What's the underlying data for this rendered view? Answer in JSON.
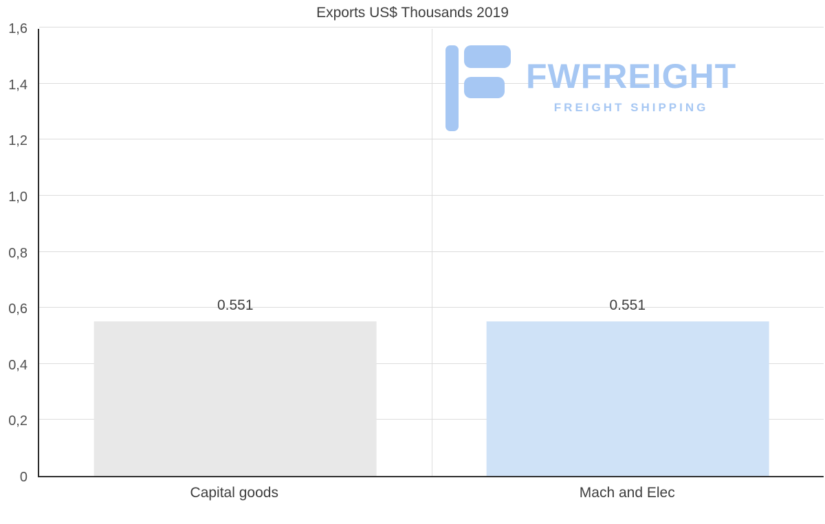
{
  "watermark": {
    "brand": "FWFREIGHT",
    "tagline": "FREIGHT SHIPPING",
    "color": "#a6c7f3"
  },
  "chart_data": {
    "type": "bar",
    "title": "Exports US$ Thousands 2019",
    "categories": [
      "Capital goods",
      "Mach and Elec"
    ],
    "values": [
      0.551,
      0.551
    ],
    "value_labels": [
      "0.551",
      "0.551"
    ],
    "bar_colors": [
      "#e8e8e8",
      "#cfe2f7"
    ],
    "xlabel": "",
    "ylabel": "",
    "ylim": [
      0,
      1.6
    ],
    "yticks": [
      0,
      0.2,
      0.4,
      0.6,
      0.8,
      1.0,
      1.2,
      1.4,
      1.6
    ],
    "ytick_labels": [
      "0",
      "0,2",
      "0,4",
      "0,6",
      "0,8",
      "1,0",
      "1,2",
      "1,4",
      "1,6"
    ],
    "grid": "horizontal gridlines plus one vertical gridline at category boundary",
    "legend": "none"
  }
}
